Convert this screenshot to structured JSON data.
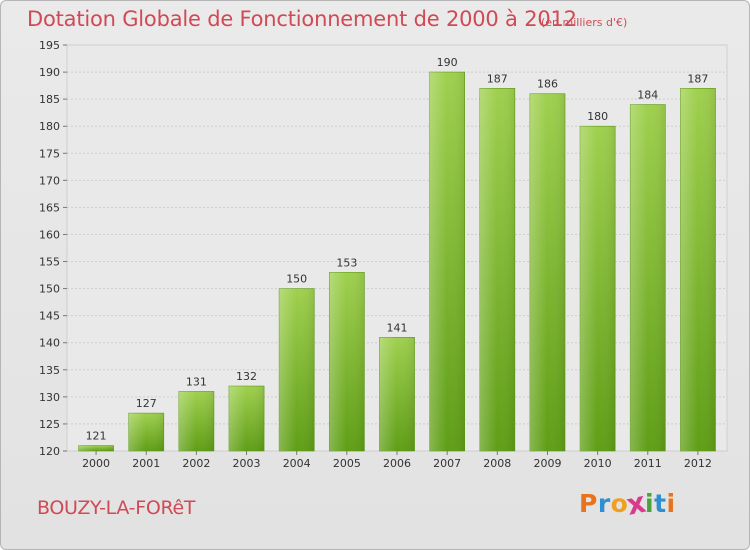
{
  "header": {
    "title": "Dotation Globale de Fonctionnement de 2000 à 2012",
    "unit": "(en milliers d'€)"
  },
  "footer": {
    "commune": "BOUZY-LA-FORêT",
    "brand_letters": [
      "P",
      "r",
      "o",
      "x",
      "i",
      "t",
      "i"
    ],
    "brand_colors": [
      "#e8731c",
      "#2f8fd0",
      "#f0a020",
      "#d93a8c",
      "#4aa23a",
      "#2f8fd0",
      "#e8731c"
    ]
  },
  "chart_data": {
    "type": "bar",
    "title": "Dotation Globale de Fonctionnement de 2000 à 2012",
    "subtitle": "(en milliers d'€)",
    "xlabel": "",
    "ylabel": "",
    "categories": [
      "2000",
      "2001",
      "2002",
      "2003",
      "2004",
      "2005",
      "2006",
      "2007",
      "2008",
      "2009",
      "2010",
      "2011",
      "2012"
    ],
    "values": [
      121,
      127,
      131,
      132,
      150,
      153,
      141,
      190,
      187,
      186,
      180,
      184,
      187
    ],
    "ylim": [
      120,
      195
    ],
    "yticks": [
      120,
      125,
      130,
      135,
      140,
      145,
      150,
      155,
      160,
      165,
      170,
      175,
      180,
      185,
      190,
      195
    ],
    "grid": true,
    "legend": "none",
    "bar_color": "#7fbf2e"
  }
}
